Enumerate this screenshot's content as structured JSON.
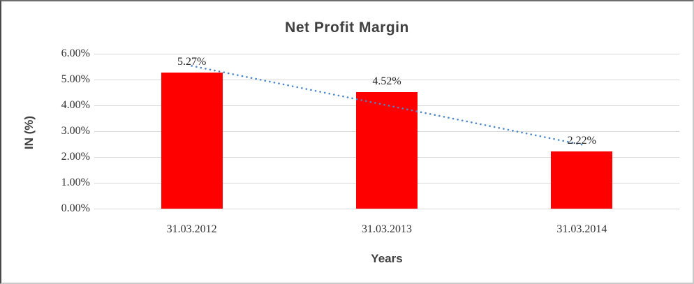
{
  "chart_data": {
    "type": "bar",
    "title": "Net Profit Margin",
    "xlabel": "Years",
    "ylabel": "IN (%)",
    "categories": [
      "31.03.2012",
      "31.03.2013",
      "31.03.2014"
    ],
    "values": [
      5.27,
      4.52,
      2.22
    ],
    "data_labels": [
      "5.27%",
      "4.52%",
      "2.22%"
    ],
    "ylim": [
      0,
      6
    ],
    "ytick_step": 1,
    "ytick_labels": [
      "0.00%",
      "1.00%",
      "2.00%",
      "3.00%",
      "4.00%",
      "5.00%",
      "6.00%"
    ],
    "grid": true,
    "legend_position": "none",
    "bar_color": "#ff0000",
    "gridline_color": "#d9d9d9",
    "title_color": "#404040",
    "tick_label_color": "#333333",
    "trendline": {
      "type": "linear",
      "style": "dotted",
      "color": "#4a86c8"
    }
  }
}
